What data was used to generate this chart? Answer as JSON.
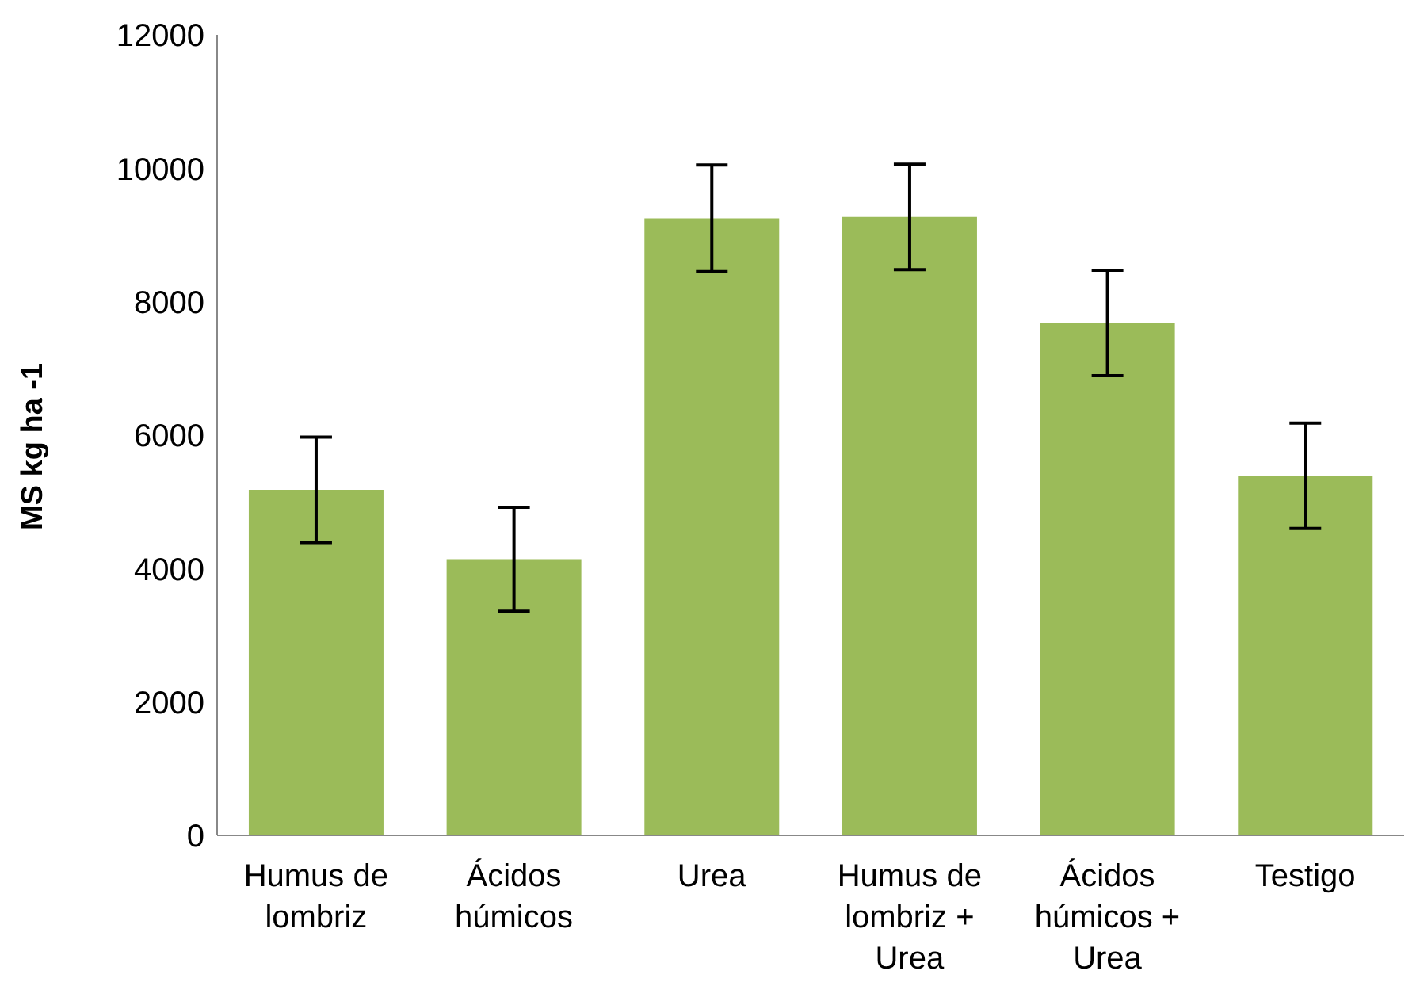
{
  "chart_data": {
    "type": "bar",
    "ylabel": "MS kg ha -1",
    "categories": [
      "Humus de lombriz",
      "Ácidos húmicos",
      "Urea",
      "Humus de lombriz + Urea",
      "Ácidos húmicos + Urea",
      "Testigo"
    ],
    "values": [
      5180,
      4140,
      9250,
      9270,
      7680,
      5390
    ],
    "errors": [
      790,
      780,
      800,
      790,
      790,
      790
    ],
    "color": "#9bbb59",
    "ylim": [
      0,
      12000
    ],
    "yticks": [
      0,
      2000,
      4000,
      6000,
      8000,
      10000,
      12000
    ],
    "grid": false,
    "legend": false
  }
}
